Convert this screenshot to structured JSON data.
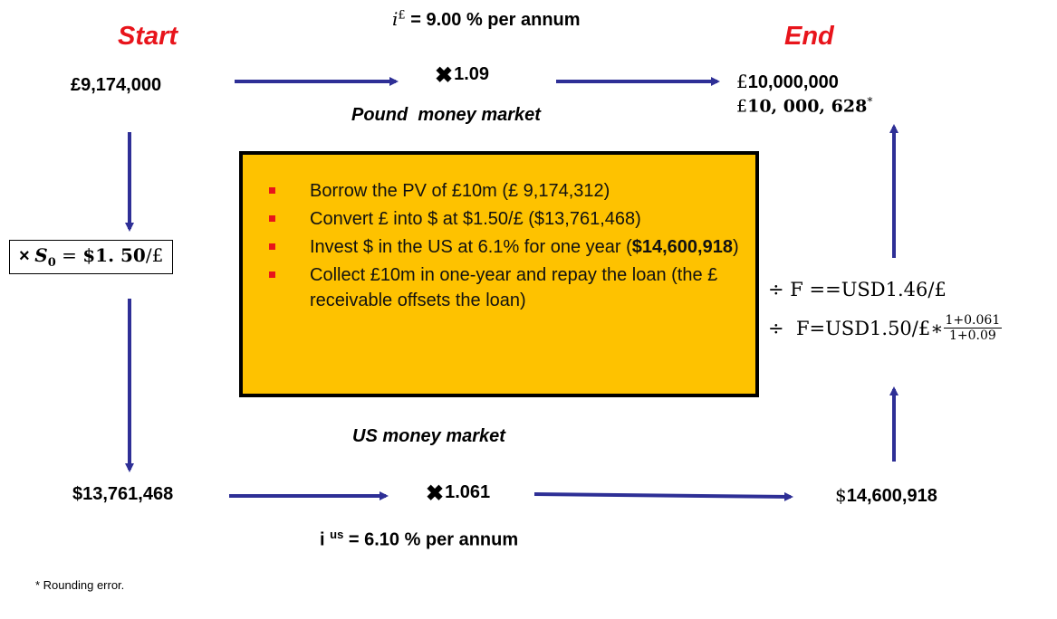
{
  "labels": {
    "start": "Start",
    "end": "End"
  },
  "pound_market": {
    "rate_symbol": "i",
    "rate_superscript": "£",
    "rate_text": " = 9.00 % per annum",
    "multiplier": "1.09",
    "name": "Pound  money market"
  },
  "us_market": {
    "name": "US money market",
    "multiplier": "1.061",
    "rate_symbol": "i ",
    "rate_superscript": "us",
    "rate_text": " = 6.10 % per annum"
  },
  "amounts": {
    "start_gbp": "£9,174,000",
    "start_usd": "$13,761,468",
    "end_usd_prefix": "$",
    "end_usd": "14,600,918",
    "end_gbp_prefix": "£",
    "end_gbp": "10,000,000",
    "end_gbp_alt_prefix": "£",
    "end_gbp_alt": "10, 000, 628",
    "end_gbp_alt_mark": "*"
  },
  "spot": {
    "prefix": "× ",
    "symbol": "S",
    "subscript": "0",
    "equals": " = ",
    "rate": "$1. 50",
    "unit": "/£"
  },
  "forward": {
    "line1": "÷ F ==USD1.46/£",
    "line2_prefix": "÷  F=USD1.50/£∗",
    "fraction_numerator": "1+0.061",
    "fraction_denominator": "1+0.09"
  },
  "steps": [
    {
      "text": "Borrow the PV of £10m (£ 9,174,312)"
    },
    {
      "text": "Convert £ into $ at $1.50/£ ($13,761,468)"
    },
    {
      "text_before": "Invest $ in the US at 6.1% for one year (",
      "text_bold": "$14,600,918",
      "text_after": ")"
    },
    {
      "text": "Collect £10m in one-year and repay the loan (the £ receivable offsets the loan)"
    }
  ],
  "footnote": "* Rounding error.",
  "colors": {
    "arrow": "#2e2f96",
    "accent_red": "#e8141b",
    "box_fill": "#fec200"
  }
}
